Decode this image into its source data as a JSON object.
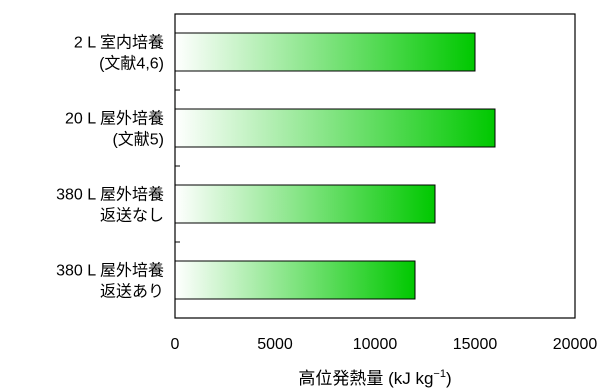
{
  "chart_data": {
    "type": "bar",
    "orientation": "horizontal",
    "categories": [
      [
        "2 L 室内培養",
        "(文献4,6)"
      ],
      [
        "20 L 屋外培養",
        "(文献5)"
      ],
      [
        "380 L 屋外培養",
        "返送なし"
      ],
      [
        "380 L 屋外培養",
        "返送あり"
      ]
    ],
    "values": [
      15000,
      16000,
      13000,
      12000
    ],
    "xlabel": "高位発熱量 (kJ kg",
    "xlabel_unit_exp": "−1",
    "xlabel_close": ")",
    "xlim": [
      0,
      20000
    ],
    "xticks": [
      "0",
      "5000",
      "10000",
      "15000",
      "20000"
    ],
    "grid": false,
    "bar_gradient": [
      "#ffffff",
      "#00c800"
    ]
  }
}
